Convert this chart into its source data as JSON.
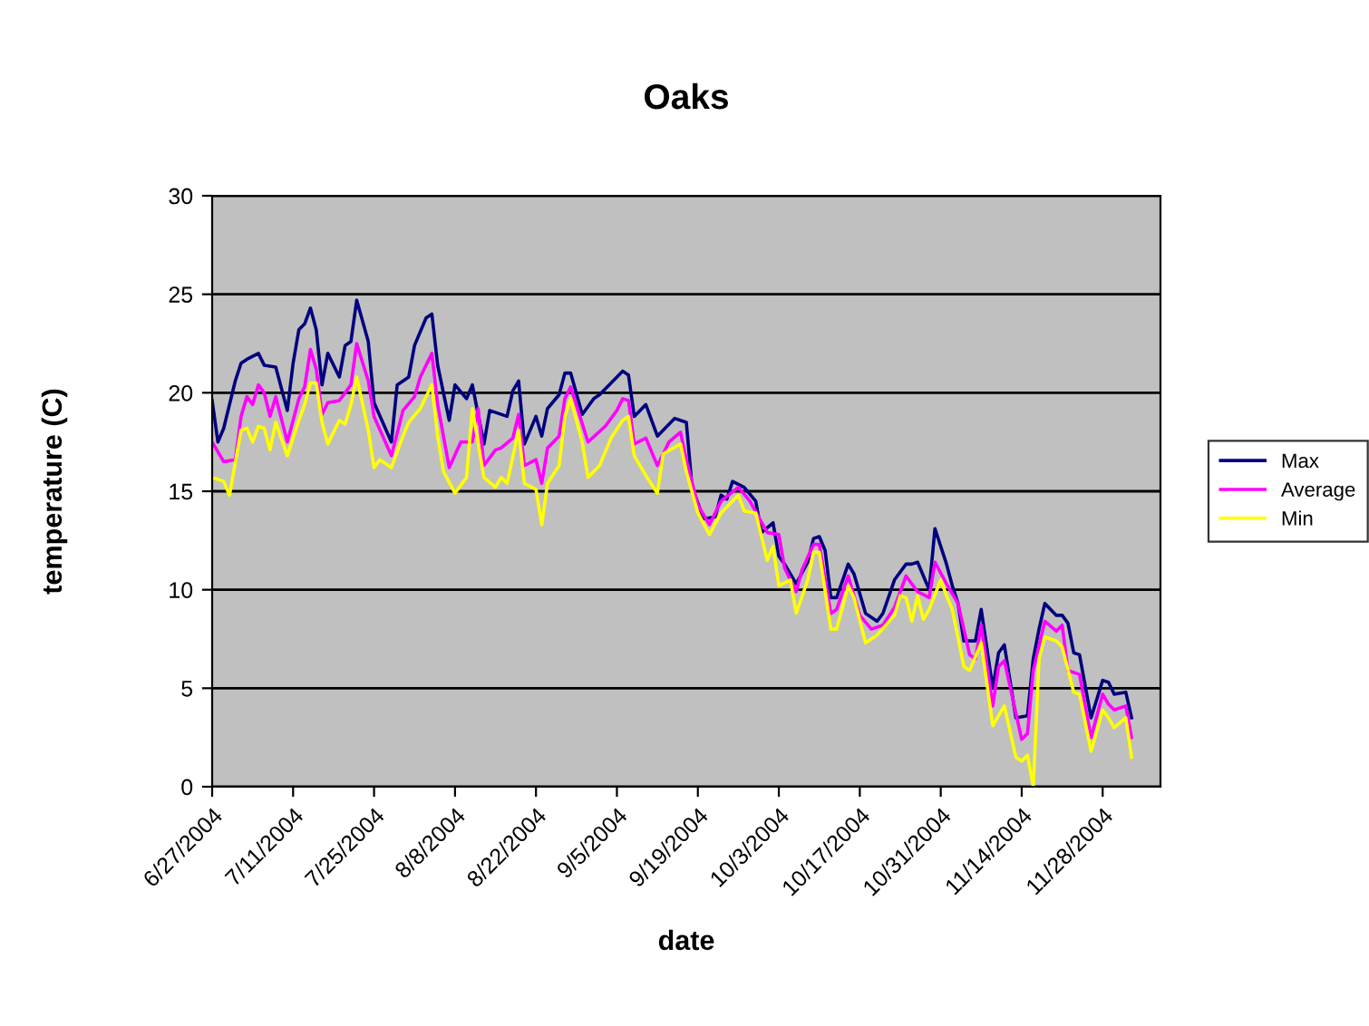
{
  "chart_data": {
    "type": "line",
    "title": "Oaks",
    "xlabel": "date",
    "ylabel": "temperature (C)",
    "xlim": [
      "2004-06-27",
      "2004-12-08"
    ],
    "ylim": [
      0,
      30
    ],
    "yticks": [
      0,
      5,
      10,
      15,
      20,
      25,
      30
    ],
    "xticks": [
      {
        "value": "2004-06-27",
        "label": "6/27/2004"
      },
      {
        "value": "2004-07-11",
        "label": "7/11/2004"
      },
      {
        "value": "2004-07-25",
        "label": "7/25/2004"
      },
      {
        "value": "2004-08-08",
        "label": "8/8/2004"
      },
      {
        "value": "2004-08-22",
        "label": "8/22/2004"
      },
      {
        "value": "2004-09-05",
        "label": "9/5/2004"
      },
      {
        "value": "2004-09-19",
        "label": "9/19/2004"
      },
      {
        "value": "2004-10-03",
        "label": "10/3/2004"
      },
      {
        "value": "2004-10-17",
        "label": "10/17/2004"
      },
      {
        "value": "2004-10-31",
        "label": "10/31/2004"
      },
      {
        "value": "2004-11-14",
        "label": "11/14/2004"
      },
      {
        "value": "2004-11-28",
        "label": "11/28/2004"
      }
    ],
    "grid": "y",
    "legend": "right",
    "marker": "none",
    "line_style": "solid",
    "series": [
      {
        "name": "Max",
        "color": "#000080",
        "x": [
          "2004-06-27",
          "2004-06-28",
          "2004-06-29",
          "2004-07-01",
          "2004-07-02",
          "2004-07-03",
          "2004-07-05",
          "2004-07-06",
          "2004-07-08",
          "2004-07-10",
          "2004-07-11",
          "2004-07-12",
          "2004-07-13",
          "2004-07-14",
          "2004-07-15",
          "2004-07-16",
          "2004-07-17",
          "2004-07-19",
          "2004-07-20",
          "2004-07-21",
          "2004-07-22",
          "2004-07-24",
          "2004-07-25",
          "2004-07-28",
          "2004-07-29",
          "2004-07-31",
          "2004-08-01",
          "2004-08-03",
          "2004-08-04",
          "2004-08-05",
          "2004-08-07",
          "2004-08-08",
          "2004-08-10",
          "2004-08-11",
          "2004-08-13",
          "2004-08-14",
          "2004-08-17",
          "2004-08-18",
          "2004-08-19",
          "2004-08-20",
          "2004-08-22",
          "2004-08-23",
          "2004-08-24",
          "2004-08-26",
          "2004-08-27",
          "2004-08-28",
          "2004-08-30",
          "2004-09-01",
          "2004-09-02",
          "2004-09-05",
          "2004-09-06",
          "2004-09-07",
          "2004-09-08",
          "2004-09-10",
          "2004-09-12",
          "2004-09-15",
          "2004-09-17",
          "2004-09-18",
          "2004-09-20",
          "2004-09-22",
          "2004-09-23",
          "2004-09-24",
          "2004-09-25",
          "2004-09-27",
          "2004-09-29",
          "2004-09-30",
          "2004-10-02",
          "2004-10-03",
          "2004-10-04",
          "2004-10-06",
          "2004-10-08",
          "2004-10-09",
          "2004-10-10",
          "2004-10-11",
          "2004-10-12",
          "2004-10-13",
          "2004-10-15",
          "2004-10-16",
          "2004-10-18",
          "2004-10-20",
          "2004-10-21",
          "2004-10-23",
          "2004-10-25",
          "2004-10-26",
          "2004-10-27",
          "2004-10-29",
          "2004-10-30",
          "2004-11-01",
          "2004-11-02",
          "2004-11-03",
          "2004-11-04",
          "2004-11-06",
          "2004-11-07",
          "2004-11-09",
          "2004-11-10",
          "2004-11-11",
          "2004-11-13",
          "2004-11-15",
          "2004-11-16",
          "2004-11-17",
          "2004-11-18",
          "2004-11-20",
          "2004-11-21",
          "2004-11-22",
          "2004-11-23",
          "2004-11-24",
          "2004-11-26",
          "2004-11-28",
          "2004-11-29",
          "2004-11-30",
          "2004-12-02",
          "2004-12-03"
        ],
        "values": [
          19.6,
          17.5,
          18.2,
          20.6,
          21.5,
          21.7,
          22.0,
          21.4,
          21.3,
          19.1,
          21.5,
          23.2,
          23.5,
          24.3,
          23.2,
          20.4,
          22.0,
          20.8,
          22.4,
          22.6,
          24.7,
          22.6,
          19.5,
          17.5,
          20.4,
          20.8,
          22.4,
          23.8,
          24.0,
          21.4,
          18.6,
          20.4,
          19.7,
          20.4,
          17.4,
          19.1,
          18.8,
          20.1,
          20.6,
          17.4,
          18.8,
          17.8,
          19.2,
          19.9,
          21.0,
          21.0,
          18.9,
          19.7,
          19.9,
          20.8,
          21.1,
          20.9,
          18.8,
          19.4,
          17.8,
          18.7,
          18.5,
          15.2,
          13.6,
          13.7,
          14.8,
          14.6,
          15.5,
          15.2,
          14.5,
          12.9,
          13.4,
          11.7,
          11.3,
          10.3,
          11.4,
          12.6,
          12.7,
          12.0,
          9.6,
          9.6,
          11.3,
          10.8,
          8.8,
          8.4,
          8.8,
          10.5,
          11.3,
          11.3,
          11.4,
          10.0,
          13.1,
          11.3,
          10.2,
          9.3,
          7.4,
          7.4,
          9.0,
          5.0,
          6.8,
          7.2,
          3.5,
          3.6,
          6.5,
          8.0,
          9.3,
          8.7,
          8.7,
          8.3,
          6.8,
          6.7,
          3.5,
          5.4,
          5.3,
          4.7,
          4.8,
          3.5
        ]
      },
      {
        "name": "Average",
        "color": "#ff00ff",
        "x": [
          "2004-06-27",
          "2004-06-29",
          "2004-07-01",
          "2004-07-02",
          "2004-07-03",
          "2004-07-04",
          "2004-07-05",
          "2004-07-06",
          "2004-07-07",
          "2004-07-08",
          "2004-07-10",
          "2004-07-12",
          "2004-07-13",
          "2004-07-14",
          "2004-07-15",
          "2004-07-16",
          "2004-07-17",
          "2004-07-19",
          "2004-07-21",
          "2004-07-22",
          "2004-07-24",
          "2004-07-25",
          "2004-07-28",
          "2004-07-30",
          "2004-08-01",
          "2004-08-02",
          "2004-08-04",
          "2004-08-05",
          "2004-08-07",
          "2004-08-09",
          "2004-08-11",
          "2004-08-12",
          "2004-08-13",
          "2004-08-15",
          "2004-08-16",
          "2004-08-18",
          "2004-08-19",
          "2004-08-20",
          "2004-08-22",
          "2004-08-23",
          "2004-08-24",
          "2004-08-26",
          "2004-08-27",
          "2004-08-28",
          "2004-08-31",
          "2004-09-03",
          "2004-09-05",
          "2004-09-06",
          "2004-09-07",
          "2004-09-08",
          "2004-09-10",
          "2004-09-12",
          "2004-09-14",
          "2004-09-16",
          "2004-09-17",
          "2004-09-19",
          "2004-09-21",
          "2004-09-23",
          "2004-09-26",
          "2004-09-28",
          "2004-10-01",
          "2004-10-03",
          "2004-10-04",
          "2004-10-06",
          "2004-10-07",
          "2004-10-09",
          "2004-10-10",
          "2004-10-12",
          "2004-10-13",
          "2004-10-15",
          "2004-10-17",
          "2004-10-19",
          "2004-10-21",
          "2004-10-23",
          "2004-10-25",
          "2004-10-27",
          "2004-10-29",
          "2004-10-30",
          "2004-11-01",
          "2004-11-03",
          "2004-11-05",
          "2004-11-06",
          "2004-11-07",
          "2004-11-09",
          "2004-11-10",
          "2004-11-11",
          "2004-11-14",
          "2004-11-15",
          "2004-11-16",
          "2004-11-18",
          "2004-11-20",
          "2004-11-21",
          "2004-11-22",
          "2004-11-24",
          "2004-11-26",
          "2004-11-28",
          "2004-11-29",
          "2004-11-30",
          "2004-12-02",
          "2004-12-03"
        ],
        "values": [
          17.5,
          16.5,
          16.6,
          18.8,
          19.8,
          19.4,
          20.4,
          20.0,
          18.8,
          19.8,
          17.5,
          19.7,
          20.3,
          22.2,
          21.2,
          18.9,
          19.5,
          19.6,
          20.4,
          22.5,
          20.6,
          18.8,
          16.8,
          19.1,
          19.8,
          20.8,
          22.0,
          19.4,
          16.2,
          17.5,
          17.5,
          19.2,
          16.3,
          17.1,
          17.2,
          17.7,
          18.9,
          16.3,
          16.6,
          15.4,
          17.2,
          17.8,
          19.7,
          20.3,
          17.5,
          18.3,
          19.1,
          19.7,
          19.6,
          17.4,
          17.7,
          16.3,
          17.5,
          18.0,
          16.6,
          14.3,
          13.3,
          14.5,
          15.2,
          14.5,
          12.9,
          12.8,
          11.1,
          9.9,
          11.0,
          12.3,
          12.3,
          8.8,
          9.0,
          10.7,
          8.7,
          8.0,
          8.2,
          9.1,
          10.7,
          9.9,
          9.6,
          11.4,
          10.3,
          9.3,
          6.7,
          6.5,
          8.2,
          4.1,
          6.1,
          6.4,
          2.4,
          2.7,
          5.9,
          8.4,
          7.9,
          8.2,
          5.9,
          5.7,
          2.5,
          4.7,
          4.2,
          3.9,
          4.1,
          2.5
        ]
      },
      {
        "name": "Min",
        "color": "#ffff00",
        "x": [
          "2004-06-27",
          "2004-06-29",
          "2004-06-30",
          "2004-07-02",
          "2004-07-03",
          "2004-07-04",
          "2004-07-05",
          "2004-07-06",
          "2004-07-07",
          "2004-07-08",
          "2004-07-10",
          "2004-07-12",
          "2004-07-13",
          "2004-07-14",
          "2004-07-15",
          "2004-07-16",
          "2004-07-17",
          "2004-07-19",
          "2004-07-20",
          "2004-07-21",
          "2004-07-22",
          "2004-07-24",
          "2004-07-25",
          "2004-07-26",
          "2004-07-28",
          "2004-07-30",
          "2004-07-31",
          "2004-08-02",
          "2004-08-04",
          "2004-08-05",
          "2004-08-06",
          "2004-08-08",
          "2004-08-10",
          "2004-08-11",
          "2004-08-13",
          "2004-08-15",
          "2004-08-16",
          "2004-08-17",
          "2004-08-19",
          "2004-08-20",
          "2004-08-22",
          "2004-08-23",
          "2004-08-24",
          "2004-08-26",
          "2004-08-27",
          "2004-08-28",
          "2004-08-30",
          "2004-08-31",
          "2004-09-02",
          "2004-09-04",
          "2004-09-06",
          "2004-09-07",
          "2004-09-08",
          "2004-09-10",
          "2004-09-12",
          "2004-09-13",
          "2004-09-16",
          "2004-09-17",
          "2004-09-19",
          "2004-09-21",
          "2004-09-23",
          "2004-09-26",
          "2004-09-27",
          "2004-09-29",
          "2004-10-01",
          "2004-10-02",
          "2004-10-03",
          "2004-10-05",
          "2004-10-06",
          "2004-10-08",
          "2004-10-09",
          "2004-10-10",
          "2004-10-12",
          "2004-10-13",
          "2004-10-15",
          "2004-10-16",
          "2004-10-18",
          "2004-10-20",
          "2004-10-23",
          "2004-10-24",
          "2004-10-25",
          "2004-10-26",
          "2004-10-27",
          "2004-10-28",
          "2004-10-29",
          "2004-10-31",
          "2004-11-01",
          "2004-11-02",
          "2004-11-04",
          "2004-11-05",
          "2004-11-07",
          "2004-11-09",
          "2004-11-11",
          "2004-11-13",
          "2004-11-14",
          "2004-11-15",
          "2004-11-16",
          "2004-11-17",
          "2004-11-18",
          "2004-11-20",
          "2004-11-21",
          "2004-11-23",
          "2004-11-24",
          "2004-11-26",
          "2004-11-28",
          "2004-11-29",
          "2004-11-30",
          "2004-12-02",
          "2004-12-03"
        ],
        "values": [
          15.7,
          15.5,
          14.8,
          18.1,
          18.2,
          17.5,
          18.3,
          18.2,
          17.1,
          18.5,
          16.8,
          18.6,
          19.4,
          20.5,
          20.5,
          18.5,
          17.4,
          18.6,
          18.4,
          19.4,
          20.8,
          18.1,
          16.2,
          16.6,
          16.2,
          17.8,
          18.5,
          19.2,
          20.4,
          17.8,
          16.0,
          14.9,
          15.7,
          19.2,
          15.7,
          15.2,
          15.7,
          15.4,
          18.1,
          15.4,
          15.1,
          13.3,
          15.4,
          16.3,
          18.8,
          19.7,
          17.5,
          15.7,
          16.3,
          17.7,
          18.6,
          18.8,
          16.8,
          15.8,
          14.9,
          16.9,
          17.4,
          16.0,
          13.9,
          12.8,
          13.9,
          14.8,
          14.0,
          13.9,
          11.5,
          12.2,
          10.2,
          10.5,
          8.8,
          10.5,
          11.9,
          11.9,
          8.0,
          8.0,
          10.2,
          9.6,
          7.3,
          7.7,
          8.7,
          9.7,
          9.6,
          8.4,
          9.7,
          8.5,
          9.0,
          10.5,
          9.7,
          9.0,
          6.1,
          5.9,
          7.3,
          3.1,
          4.1,
          1.5,
          1.3,
          1.6,
          0.0,
          6.5,
          7.6,
          7.4,
          7.1,
          4.8,
          4.7,
          1.8,
          3.9,
          3.5,
          3.0,
          3.5,
          1.5
        ]
      }
    ]
  }
}
